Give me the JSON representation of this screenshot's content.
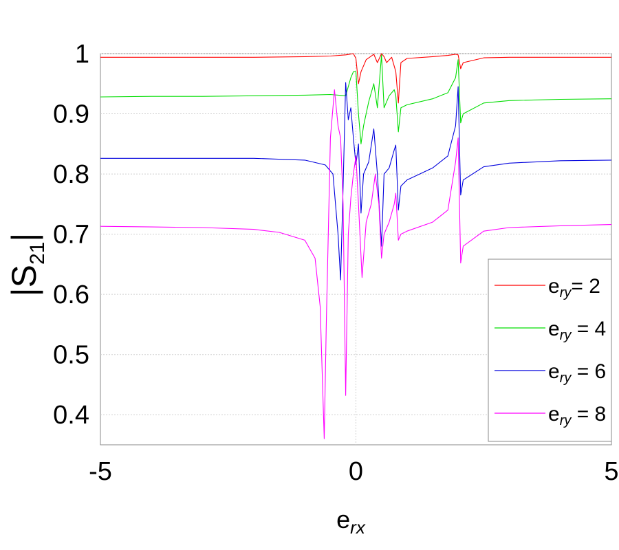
{
  "chart_data": {
    "type": "line",
    "title": "",
    "xlabel": {
      "base": "e",
      "sub": "rx"
    },
    "ylabel": {
      "base": "|S",
      "sub": "21",
      "close": "|"
    },
    "xlim": [
      -5,
      5
    ],
    "ylim": [
      0.35,
      1.0
    ],
    "xticks": [
      -5,
      0,
      5
    ],
    "yticks": [
      0.4,
      0.5,
      0.6,
      0.7,
      0.8,
      0.9,
      1
    ],
    "grid": true,
    "legend_position": "bottom-right",
    "series": [
      {
        "name": "e_ry= 2",
        "legend": {
          "base": "e",
          "sub": "ry",
          "rest": "= 2"
        },
        "color": "#ff0000",
        "points": [
          [
            -5,
            0.994
          ],
          [
            -4,
            0.994
          ],
          [
            -3,
            0.994
          ],
          [
            -2,
            0.994
          ],
          [
            -1,
            0.995
          ],
          [
            -0.5,
            0.996
          ],
          [
            -0.2,
            0.998
          ],
          [
            -0.05,
            1.0
          ],
          [
            0.0,
            0.992
          ],
          [
            0.05,
            0.95
          ],
          [
            0.1,
            0.97
          ],
          [
            0.2,
            0.99
          ],
          [
            0.35,
            0.999
          ],
          [
            0.42,
            0.985
          ],
          [
            0.5,
            1.0
          ],
          [
            0.55,
            0.995
          ],
          [
            0.6,
            0.985
          ],
          [
            0.7,
            0.994
          ],
          [
            0.78,
            0.97
          ],
          [
            0.83,
            0.918
          ],
          [
            0.88,
            0.985
          ],
          [
            1.0,
            0.992
          ],
          [
            1.5,
            0.995
          ],
          [
            1.8,
            0.997
          ],
          [
            1.95,
            0.999
          ],
          [
            2.0,
            0.998
          ],
          [
            2.05,
            0.975
          ],
          [
            2.1,
            0.985
          ],
          [
            2.5,
            0.993
          ],
          [
            3,
            0.994
          ],
          [
            4,
            0.994
          ],
          [
            5,
            0.994
          ]
        ]
      },
      {
        "name": "e_ry = 4",
        "legend": {
          "base": "e",
          "sub": "ry",
          "rest": " = 4"
        },
        "color": "#00dd00",
        "points": [
          [
            -5,
            0.928
          ],
          [
            -4,
            0.929
          ],
          [
            -3,
            0.929
          ],
          [
            -2,
            0.93
          ],
          [
            -1,
            0.931
          ],
          [
            -0.5,
            0.932
          ],
          [
            -0.2,
            0.93
          ],
          [
            -0.1,
            0.96
          ],
          [
            -0.05,
            0.97
          ],
          [
            0.0,
            0.97
          ],
          [
            0.05,
            0.9
          ],
          [
            0.1,
            0.85
          ],
          [
            0.15,
            0.88
          ],
          [
            0.25,
            0.92
          ],
          [
            0.35,
            0.95
          ],
          [
            0.42,
            0.91
          ],
          [
            0.5,
            0.998
          ],
          [
            0.55,
            0.91
          ],
          [
            0.65,
            0.93
          ],
          [
            0.75,
            0.94
          ],
          [
            0.78,
            0.93
          ],
          [
            0.83,
            0.87
          ],
          [
            0.88,
            0.91
          ],
          [
            1.0,
            0.915
          ],
          [
            1.5,
            0.925
          ],
          [
            1.8,
            0.935
          ],
          [
            1.95,
            0.96
          ],
          [
            2.0,
            0.99
          ],
          [
            2.05,
            0.885
          ],
          [
            2.1,
            0.9
          ],
          [
            2.5,
            0.918
          ],
          [
            3,
            0.922
          ],
          [
            4,
            0.924
          ],
          [
            5,
            0.925
          ]
        ]
      },
      {
        "name": "e_ry = 6",
        "legend": {
          "base": "e",
          "sub": "ry",
          "rest": " = 6"
        },
        "color": "#0000dd",
        "points": [
          [
            -5,
            0.826
          ],
          [
            -4,
            0.826
          ],
          [
            -3,
            0.826
          ],
          [
            -2,
            0.826
          ],
          [
            -1,
            0.823
          ],
          [
            -0.6,
            0.815
          ],
          [
            -0.45,
            0.8
          ],
          [
            -0.35,
            0.7
          ],
          [
            -0.3,
            0.624
          ],
          [
            -0.25,
            0.78
          ],
          [
            -0.2,
            0.952
          ],
          [
            -0.15,
            0.89
          ],
          [
            -0.1,
            0.91
          ],
          [
            -0.05,
            0.86
          ],
          [
            0.0,
            0.815
          ],
          [
            0.05,
            0.85
          ],
          [
            0.1,
            0.735
          ],
          [
            0.15,
            0.8
          ],
          [
            0.25,
            0.82
          ],
          [
            0.35,
            0.875
          ],
          [
            0.42,
            0.8
          ],
          [
            0.5,
            0.68
          ],
          [
            0.55,
            0.8
          ],
          [
            0.65,
            0.81
          ],
          [
            0.75,
            0.84
          ],
          [
            0.78,
            0.848
          ],
          [
            0.83,
            0.74
          ],
          [
            0.88,
            0.78
          ],
          [
            1.0,
            0.79
          ],
          [
            1.5,
            0.81
          ],
          [
            1.8,
            0.83
          ],
          [
            1.95,
            0.88
          ],
          [
            2.0,
            0.945
          ],
          [
            2.05,
            0.765
          ],
          [
            2.1,
            0.79
          ],
          [
            2.5,
            0.812
          ],
          [
            3,
            0.818
          ],
          [
            4,
            0.822
          ],
          [
            5,
            0.823
          ]
        ]
      },
      {
        "name": "e_ry = 8",
        "legend": {
          "base": "e",
          "sub": "ry",
          "rest": " = 8"
        },
        "color": "#ff00ff",
        "points": [
          [
            -5,
            0.713
          ],
          [
            -4,
            0.712
          ],
          [
            -3,
            0.711
          ],
          [
            -2,
            0.708
          ],
          [
            -1.5,
            0.703
          ],
          [
            -1,
            0.69
          ],
          [
            -0.8,
            0.66
          ],
          [
            -0.7,
            0.58
          ],
          [
            -0.62,
            0.36
          ],
          [
            -0.58,
            0.55
          ],
          [
            -0.5,
            0.86
          ],
          [
            -0.42,
            0.94
          ],
          [
            -0.35,
            0.88
          ],
          [
            -0.3,
            0.86
          ],
          [
            -0.25,
            0.75
          ],
          [
            -0.2,
            0.432
          ],
          [
            -0.15,
            0.7
          ],
          [
            -0.1,
            0.76
          ],
          [
            -0.05,
            0.8
          ],
          [
            0.0,
            0.83
          ],
          [
            0.05,
            0.75
          ],
          [
            0.12,
            0.628
          ],
          [
            0.2,
            0.72
          ],
          [
            0.3,
            0.75
          ],
          [
            0.38,
            0.8
          ],
          [
            0.45,
            0.75
          ],
          [
            0.5,
            0.66
          ],
          [
            0.55,
            0.7
          ],
          [
            0.65,
            0.72
          ],
          [
            0.75,
            0.75
          ],
          [
            0.78,
            0.768
          ],
          [
            0.83,
            0.69
          ],
          [
            0.88,
            0.7
          ],
          [
            1.0,
            0.705
          ],
          [
            1.5,
            0.72
          ],
          [
            1.8,
            0.74
          ],
          [
            1.95,
            0.82
          ],
          [
            2.0,
            0.86
          ],
          [
            2.05,
            0.652
          ],
          [
            2.1,
            0.68
          ],
          [
            2.5,
            0.705
          ],
          [
            3,
            0.711
          ],
          [
            4,
            0.714
          ],
          [
            5,
            0.716
          ]
        ]
      }
    ]
  }
}
